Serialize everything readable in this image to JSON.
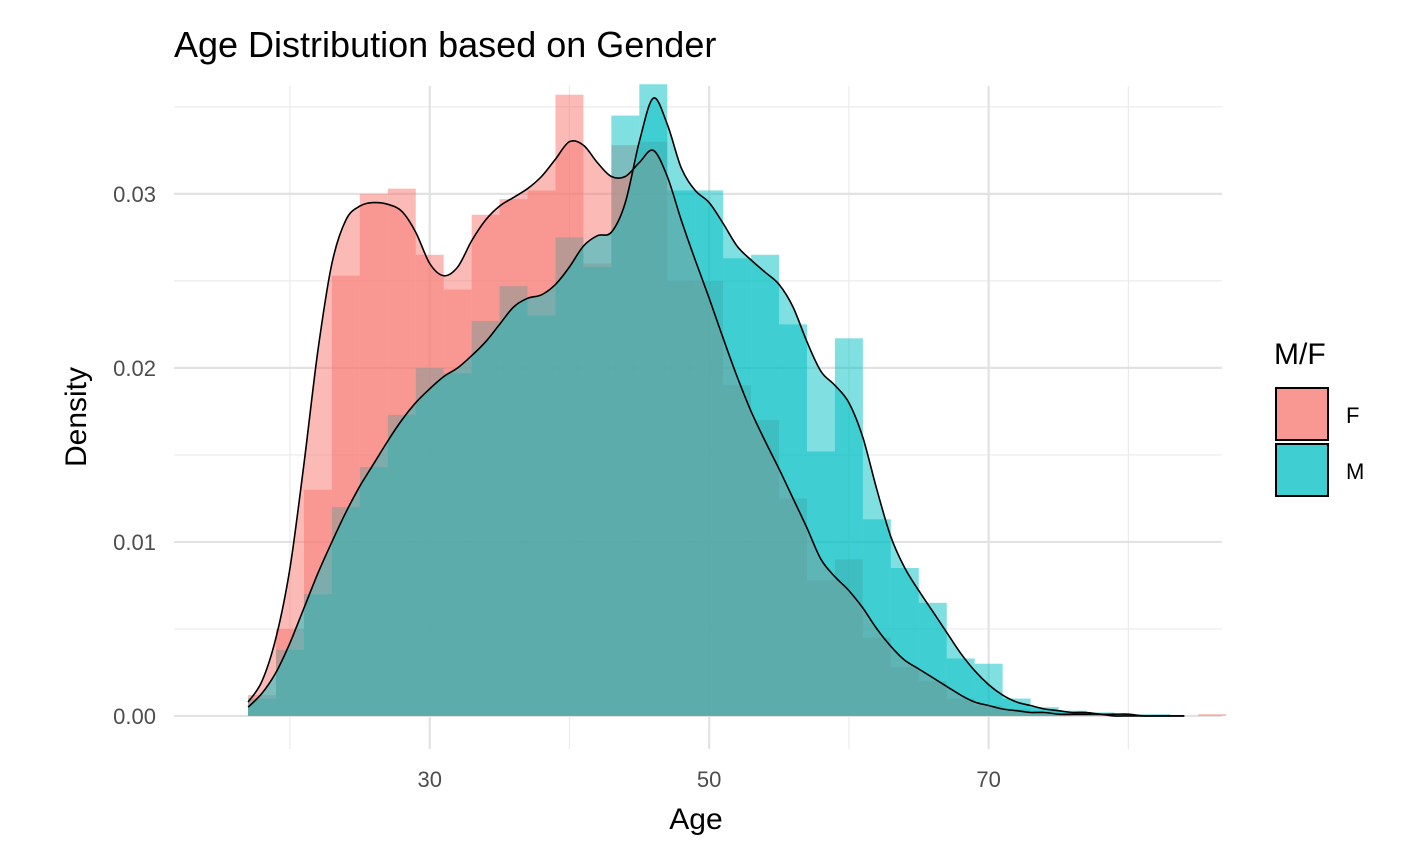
{
  "chart_data": {
    "type": "area",
    "title": "Age Distribution based on Gender",
    "xlabel": "Age",
    "ylabel": "Density",
    "xlim": [
      11.7,
      86.7
    ],
    "ylim": [
      -0.0019,
      0.0362
    ],
    "x_ticks": [
      30,
      50,
      70
    ],
    "x_tick_labels": [
      "30",
      "50",
      "70"
    ],
    "x_minor_ticks": [
      20,
      40,
      60,
      80
    ],
    "y_ticks": [
      0.0,
      0.01,
      0.02,
      0.03
    ],
    "y_tick_labels": [
      "0.00",
      "0.01",
      "0.02",
      "0.03"
    ],
    "y_minor_ticks": [
      0.005,
      0.015,
      0.025,
      0.035
    ],
    "grid": true,
    "legend": {
      "title": "M/F",
      "position": "right",
      "entries": [
        "F",
        "M"
      ]
    },
    "histogram": {
      "bin_width": 2,
      "bin_starts": [
        17,
        19,
        21,
        23,
        25,
        27,
        29,
        31,
        33,
        35,
        37,
        39,
        41,
        43,
        45,
        47,
        49,
        51,
        53,
        55,
        57,
        59,
        61,
        63,
        65,
        67,
        69,
        71,
        73,
        75,
        77,
        79,
        81,
        83,
        85
      ],
      "series": [
        {
          "name": "F",
          "color": "#F8766D",
          "values": [
            0.0012,
            0.005,
            0.013,
            0.0253,
            0.03,
            0.0303,
            0.0265,
            0.0245,
            0.0288,
            0.0297,
            0.0302,
            0.0357,
            0.026,
            0.0328,
            0.033,
            0.025,
            0.025,
            0.019,
            0.017,
            0.0125,
            0.0078,
            0.009,
            0.0045,
            0.0028,
            0.002,
            0.001,
            0.0006,
            0.0004,
            0.0003,
            0.0002,
            0.0001,
            0.0001,
            0.0,
            0.0,
            0.0001
          ]
        },
        {
          "name": "M",
          "color": "#00BFC4",
          "values": [
            0.001,
            0.0038,
            0.007,
            0.012,
            0.0143,
            0.0173,
            0.02,
            0.0197,
            0.0227,
            0.0247,
            0.023,
            0.0275,
            0.0258,
            0.0345,
            0.0363,
            0.0302,
            0.0302,
            0.0263,
            0.0265,
            0.0225,
            0.0152,
            0.0217,
            0.0113,
            0.0085,
            0.0065,
            0.0033,
            0.003,
            0.001,
            0.0005,
            0.0003,
            0.0002,
            0.0001,
            0.0001,
            0.0,
            0.0
          ]
        }
      ]
    },
    "density": {
      "x": [
        17,
        18,
        19,
        20,
        21,
        22,
        23,
        24,
        25,
        26,
        27,
        28,
        29,
        30,
        31,
        32,
        33,
        34,
        35,
        36,
        37,
        38,
        39,
        40,
        41,
        42,
        43,
        44,
        45,
        46,
        47,
        48,
        49,
        50,
        51,
        52,
        53,
        54,
        55,
        56,
        57,
        58,
        59,
        60,
        61,
        62,
        63,
        64,
        65,
        66,
        67,
        68,
        69,
        70,
        71,
        72,
        73,
        74,
        75,
        76,
        77,
        78,
        79,
        80,
        81,
        82,
        83,
        84
      ],
      "series": [
        {
          "name": "F",
          "color": "#F8766D",
          "values": [
            0.0008,
            0.002,
            0.0045,
            0.0085,
            0.0145,
            0.021,
            0.026,
            0.0285,
            0.0293,
            0.0295,
            0.0294,
            0.029,
            0.0278,
            0.026,
            0.0253,
            0.0258,
            0.0273,
            0.0285,
            0.0293,
            0.0298,
            0.0303,
            0.031,
            0.032,
            0.033,
            0.0328,
            0.0318,
            0.031,
            0.031,
            0.0318,
            0.0325,
            0.031,
            0.0285,
            0.0262,
            0.024,
            0.0217,
            0.0195,
            0.0175,
            0.0158,
            0.0142,
            0.0125,
            0.0108,
            0.009,
            0.008,
            0.0072,
            0.0062,
            0.005,
            0.004,
            0.0032,
            0.0027,
            0.0022,
            0.0017,
            0.0012,
            0.0008,
            0.0006,
            0.0004,
            0.0003,
            0.0002,
            0.0002,
            0.0001,
            0.0001,
            0.0001,
            0.0001,
            0.0,
            0.0,
            0.0,
            0.0,
            0.0,
            0.0
          ]
        },
        {
          "name": "M",
          "color": "#00BFC4",
          "values": [
            0.0005,
            0.0013,
            0.0025,
            0.0042,
            0.0062,
            0.0082,
            0.01,
            0.0117,
            0.0132,
            0.0145,
            0.0158,
            0.017,
            0.018,
            0.0188,
            0.0195,
            0.02,
            0.0207,
            0.0215,
            0.0225,
            0.0235,
            0.024,
            0.0242,
            0.0248,
            0.0258,
            0.027,
            0.0276,
            0.0278,
            0.0295,
            0.033,
            0.0355,
            0.034,
            0.0315,
            0.0302,
            0.0295,
            0.0283,
            0.027,
            0.0262,
            0.0255,
            0.0248,
            0.0235,
            0.0215,
            0.0198,
            0.019,
            0.018,
            0.016,
            0.013,
            0.0103,
            0.0085,
            0.0072,
            0.006,
            0.0048,
            0.0036,
            0.0026,
            0.0018,
            0.0012,
            0.0008,
            0.0006,
            0.0004,
            0.0003,
            0.0002,
            0.0002,
            0.0001,
            0.0001,
            0.0001,
            0.0,
            0.0,
            0.0,
            0.0
          ]
        }
      ]
    }
  }
}
